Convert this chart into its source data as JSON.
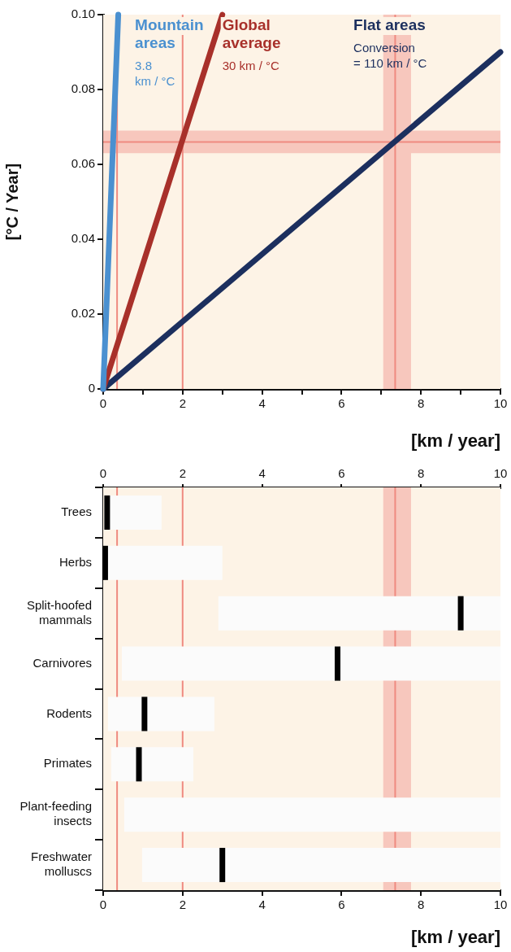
{
  "chart_data": [
    {
      "type": "line",
      "ylabel": "[°C / Year]",
      "xlabel": "[km / year]",
      "xlim": [
        0,
        10
      ],
      "ylim": [
        0,
        0.1
      ],
      "xticks": [
        0,
        {
          "value": 1,
          "label": null
        },
        2,
        {
          "value": 3,
          "label": null
        },
        4,
        {
          "value": 5,
          "label": null
        },
        6,
        {
          "value": 7,
          "label": null
        },
        8,
        {
          "value": 9,
          "label": null
        },
        10
      ],
      "yticks": [
        0,
        0.02,
        0.04,
        0.06,
        0.08,
        {
          "value": 0.1,
          "label": "0.10"
        }
      ],
      "series": [
        {
          "name": "Mountain areas",
          "color": "#4a90d0",
          "x": [
            0,
            0.38
          ],
          "values": [
            0,
            0.1
          ]
        },
        {
          "name": "Global average",
          "color": "#a8302a",
          "x": [
            0,
            3
          ],
          "values": [
            0,
            0.1
          ]
        },
        {
          "name": "Flat areas",
          "color": "#1c2f5e",
          "x": [
            0,
            10
          ],
          "values": [
            0,
            0.09
          ]
        }
      ],
      "annotations": [
        "3.8 km / °C",
        "30 km / °C",
        "Conversion = 110 km / °C"
      ],
      "bands": [
        {
          "axis": "x",
          "from": 0,
          "to": 10,
          "color": "#fdf3e6"
        },
        {
          "axis": "y",
          "from": 0.063,
          "to": 0.069,
          "color": "#f7c7bd"
        },
        {
          "axis": "x",
          "from": 7.05,
          "to": 7.75,
          "color": "#f7c7bd"
        }
      ],
      "ref_lines": [
        {
          "axis": "y",
          "value": 0.066,
          "color": "#ef8a80"
        },
        {
          "axis": "x",
          "value": 0.35,
          "color": "#ef8a80"
        },
        {
          "axis": "x",
          "value": 2,
          "color": "#ef8a80"
        },
        {
          "axis": "x",
          "value": 7.35,
          "color": "#ef8a80"
        }
      ],
      "grid": false,
      "legend": false,
      "marker": "none",
      "line_style": "solid"
    },
    {
      "type": "box",
      "orientation": "horizontal",
      "xlabel": "[km / year]",
      "xlim": [
        0,
        10
      ],
      "xticks": [
        0,
        2,
        4,
        6,
        8,
        10
      ],
      "x2lim": [
        0,
        10
      ],
      "x2ticks": [
        0,
        2,
        4,
        6,
        8,
        10
      ],
      "categories": [
        "Trees",
        "Herbs",
        "Split-hoofed mammals",
        "Carnivores",
        "Rodents",
        "Primates",
        "Plant-feeding insects",
        "Freshwater molluscs"
      ],
      "color": "#fbfbfb",
      "boxes": [
        {
          "low": 0,
          "q1": 0,
          "median": 0.1,
          "q3": 1.47,
          "high": 1.47
        },
        {
          "low": 0,
          "q1": 0,
          "median": 0.05,
          "q3": 3,
          "high": 3
        },
        {
          "low": 2.9,
          "q1": 2.9,
          "median": 9,
          "q3": 10,
          "high": 10
        },
        {
          "low": 0.47,
          "q1": 0.47,
          "median": 5.9,
          "q3": 10,
          "high": 10
        },
        {
          "low": 0.12,
          "q1": 0.12,
          "median": 1.04,
          "q3": 2.8,
          "high": 2.8
        },
        {
          "low": 0.2,
          "q1": 0.2,
          "median": 0.9,
          "q3": 2.27,
          "high": 2.27
        },
        {
          "low": 0.53,
          "q1": 0.53,
          "median": null,
          "q3": 10,
          "high": 10
        },
        {
          "low": 0.98,
          "q1": 0.98,
          "median": 3,
          "q3": 10,
          "high": 10
        }
      ],
      "bands": [
        {
          "axis": "x",
          "from": 0,
          "to": 10,
          "color": "#fdf3e6"
        },
        {
          "axis": "x",
          "from": 7.05,
          "to": 7.75,
          "color": "#f7c7bd"
        }
      ],
      "ref_lines": [
        {
          "axis": "x",
          "value": 0.35,
          "color": "#ef8a80"
        },
        {
          "axis": "x",
          "value": 2,
          "color": "#ef8a80"
        },
        {
          "axis": "x",
          "value": 7.35,
          "color": "#ef8a80"
        }
      ],
      "grid": false,
      "legend": false
    }
  ]
}
